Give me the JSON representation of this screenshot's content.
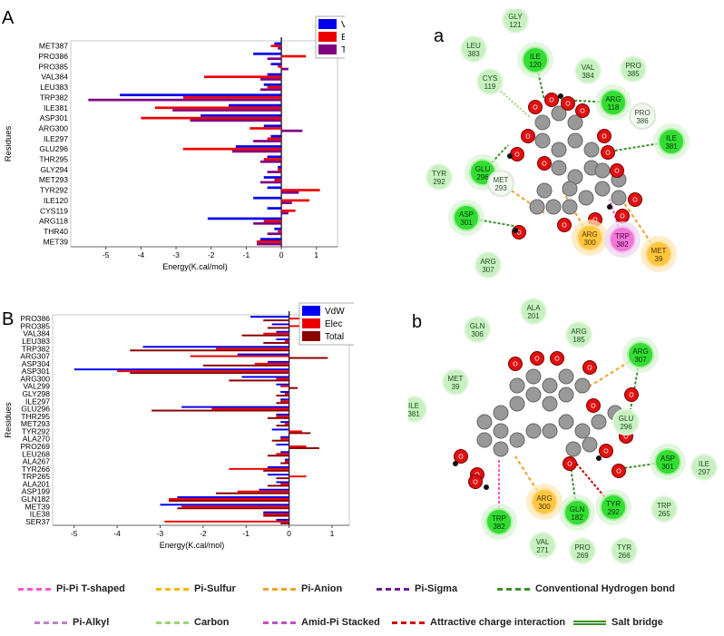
{
  "chart_data": [
    {
      "type": "bar",
      "panel_letter": "A",
      "orientation": "horizontal",
      "ylabel": "Residues",
      "xlabel": "Energy(K.cal/mol)",
      "xlim": [
        -6,
        1.6
      ],
      "xticks": [
        -5,
        -4,
        -3,
        -2,
        -1,
        0,
        1
      ],
      "legend": "top-right",
      "categories": [
        "MET387",
        "PRO386",
        "PRO385",
        "VAL384",
        "LEU383",
        "TRP382",
        "ILE381",
        "ASP301",
        "ARG300",
        "ILE297",
        "GLU296",
        "THR295",
        "GLY294",
        "MET293",
        "TYR292",
        "ILE120",
        "CYS119",
        "ARG118",
        "THR40",
        "MET39"
      ],
      "series": [
        {
          "name": "VdW",
          "color": "#0000ee",
          "values": [
            -0.2,
            -0.8,
            -0.3,
            -0.4,
            -0.5,
            -4.6,
            -1.5,
            -2.3,
            -0.5,
            -0.3,
            -1.3,
            -0.4,
            -0.1,
            -0.5,
            -0.4,
            -0.8,
            -0.4,
            -2.1,
            -0.2,
            -0.6
          ]
        },
        {
          "name": "Elec",
          "color": "#ee0000",
          "values": [
            -0.3,
            0.7,
            -0.1,
            -2.2,
            -0.4,
            -2.8,
            -3.6,
            -4.0,
            -0.9,
            -0.4,
            -2.8,
            -0.5,
            -0.1,
            -0.2,
            1.1,
            0.8,
            0.4,
            -0.5,
            -0.1,
            -0.7
          ]
        },
        {
          "name": "Total",
          "color": "#800080",
          "values": [
            -0.1,
            -0.4,
            0.2,
            -0.6,
            -0.6,
            -5.5,
            -3.1,
            -2.6,
            0.6,
            -0.8,
            -1.4,
            -0.6,
            -0.4,
            -0.6,
            0.5,
            0.3,
            0.2,
            -0.8,
            -0.4,
            -0.7
          ]
        }
      ]
    },
    {
      "type": "bar",
      "panel_letter": "B",
      "orientation": "horizontal",
      "ylabel": "Residues",
      "xlabel": "Energy(K.cal/mol)",
      "xlim": [
        -5.5,
        1.4
      ],
      "xticks": [
        -5,
        -4,
        -3,
        -2,
        -1,
        0,
        1
      ],
      "legend": "top-right",
      "categories": [
        "PRO386",
        "PRO385",
        "VAL384",
        "LEU383",
        "TRP382",
        "ARG307",
        "ASP304",
        "ASP301",
        "ARG300",
        "VAL299",
        "GLY298",
        "ILE297",
        "GLU296",
        "THR295",
        "MET293",
        "TYR292",
        "ALA270",
        "PRO269",
        "LEU268",
        "ALA267",
        "TYR266",
        "TRP265",
        "ALA201",
        "ASP199",
        "GLN182",
        "MET39",
        "ILE38",
        "SER37"
      ],
      "series": [
        {
          "name": "VdW",
          "color": "#0000ee",
          "values": [
            -0.9,
            -0.4,
            -0.3,
            -0.3,
            -3.4,
            -1.2,
            -0.5,
            -5.0,
            -1.1,
            -0.3,
            -0.2,
            -0.2,
            -2.5,
            -0.3,
            -0.2,
            -0.4,
            -0.2,
            -0.3,
            -0.2,
            -0.1,
            -0.5,
            -0.5,
            -0.3,
            -0.7,
            -2.6,
            -3.0,
            -0.6,
            -0.3
          ]
        },
        {
          "name": "Elec",
          "color": "#ee0000",
          "values": [
            0.8,
            0.3,
            -0.6,
            -0.1,
            -1.7,
            -2.3,
            -0.8,
            -4.0,
            -0.3,
            -0.2,
            -0.1,
            -0.2,
            -1.8,
            -0.3,
            -0.1,
            0.3,
            -0.2,
            0.4,
            -0.3,
            -0.1,
            -1.4,
            0.4,
            -0.2,
            -1.2,
            -2.8,
            -2.5,
            -0.6,
            -2.9
          ]
        },
        {
          "name": "Total",
          "color": "#8b0000",
          "values": [
            -0.6,
            -0.5,
            -1.1,
            -0.6,
            -3.7,
            0.9,
            -2.0,
            -3.7,
            -1.4,
            0.2,
            -0.3,
            -0.3,
            -3.2,
            -0.5,
            -0.3,
            0.5,
            -0.4,
            0.7,
            -0.5,
            -0.2,
            -0.6,
            -0.3,
            -0.5,
            -1.7,
            -2.8,
            -2.6,
            -0.6,
            -0.2
          ]
        }
      ]
    }
  ],
  "diagrams": [
    {
      "panel_letter": "a",
      "residues": [
        {
          "label": [
            "GLY",
            "121"
          ],
          "kind": "carbon"
        },
        {
          "label": [
            "LEU",
            "383"
          ],
          "kind": "carbon"
        },
        {
          "label": [
            "ILE",
            "120"
          ],
          "kind": "hbond"
        },
        {
          "label": [
            "VAL",
            "384"
          ],
          "kind": "carbon"
        },
        {
          "label": [
            "PRO",
            "385"
          ],
          "kind": "carbon"
        },
        {
          "label": [
            "CYS",
            "119"
          ],
          "kind": "carbon"
        },
        {
          "label": [
            "ARG",
            "118"
          ],
          "kind": "hbond"
        },
        {
          "label": [
            "PRO",
            "386"
          ],
          "kind": "plain"
        },
        {
          "label": [
            "ILE",
            "381"
          ],
          "kind": "hbond"
        },
        {
          "label": [
            "TYR",
            "292"
          ],
          "kind": "carbon"
        },
        {
          "label": [
            "GLU",
            "296"
          ],
          "kind": "hbond"
        },
        {
          "label": [
            "MET",
            "293"
          ],
          "kind": "plain"
        },
        {
          "label": [
            "ASP",
            "301"
          ],
          "kind": "hbond"
        },
        {
          "label": [
            "ARG",
            "300"
          ],
          "kind": "orange"
        },
        {
          "label": [
            "TRP",
            "382"
          ],
          "kind": "pink"
        },
        {
          "label": [
            "MET",
            "39"
          ],
          "kind": "orange"
        },
        {
          "label": [
            "ARG",
            "307"
          ],
          "kind": "carbon"
        }
      ]
    },
    {
      "panel_letter": "b",
      "residues": [
        {
          "label": [
            "ALA",
            "201"
          ],
          "kind": "carbon"
        },
        {
          "label": [
            "GLN",
            "306"
          ],
          "kind": "carbon"
        },
        {
          "label": [
            "ARG",
            "185"
          ],
          "kind": "carbon"
        },
        {
          "label": [
            "ARG",
            "307"
          ],
          "kind": "hbond"
        },
        {
          "label": [
            "MET",
            "39"
          ],
          "kind": "carbon"
        },
        {
          "label": [
            "ILE",
            "381"
          ],
          "kind": "carbon"
        },
        {
          "label": [
            "GLU",
            "296"
          ],
          "kind": "carbon"
        },
        {
          "label": [
            "ASP",
            "301"
          ],
          "kind": "hbond"
        },
        {
          "label": [
            "ILE",
            "297"
          ],
          "kind": "carbon"
        },
        {
          "label": [
            "ARG",
            "300"
          ],
          "kind": "orange"
        },
        {
          "label": [
            "TRP",
            "382"
          ],
          "kind": "hbond"
        },
        {
          "label": [
            "GLN",
            "182"
          ],
          "kind": "hbond"
        },
        {
          "label": [
            "TYR",
            "292"
          ],
          "kind": "hbond"
        },
        {
          "label": [
            "TRP",
            "265"
          ],
          "kind": "carbon"
        },
        {
          "label": [
            "VAL",
            "271"
          ],
          "kind": "carbon"
        },
        {
          "label": [
            "TYR",
            "266"
          ],
          "kind": "carbon"
        },
        {
          "label": [
            "PRO",
            "269"
          ],
          "kind": "carbon"
        }
      ]
    }
  ],
  "legend": [
    {
      "label": "Pi-Pi T-shaped",
      "color": "#ff55cc"
    },
    {
      "label": "Pi-Sulfur",
      "color": "#f5b700"
    },
    {
      "label": "Pi-Anion",
      "color": "#f0a030"
    },
    {
      "label": "Pi-Sigma",
      "color": "#6a1b9a"
    },
    {
      "label": "Conventional Hydrogen bond",
      "color": "#3a8f2a"
    },
    {
      "label": "Pi-Alkyl",
      "color": "#c080c8"
    },
    {
      "label": "Carbon",
      "color": "#9bd37a"
    },
    {
      "label": "Amid-Pi Stacked",
      "color": "#c050c0"
    },
    {
      "label": "Attractive charge interaction",
      "color": "#cc0000"
    },
    {
      "label": "Salt bridge",
      "color": "#3a8f2a"
    }
  ]
}
